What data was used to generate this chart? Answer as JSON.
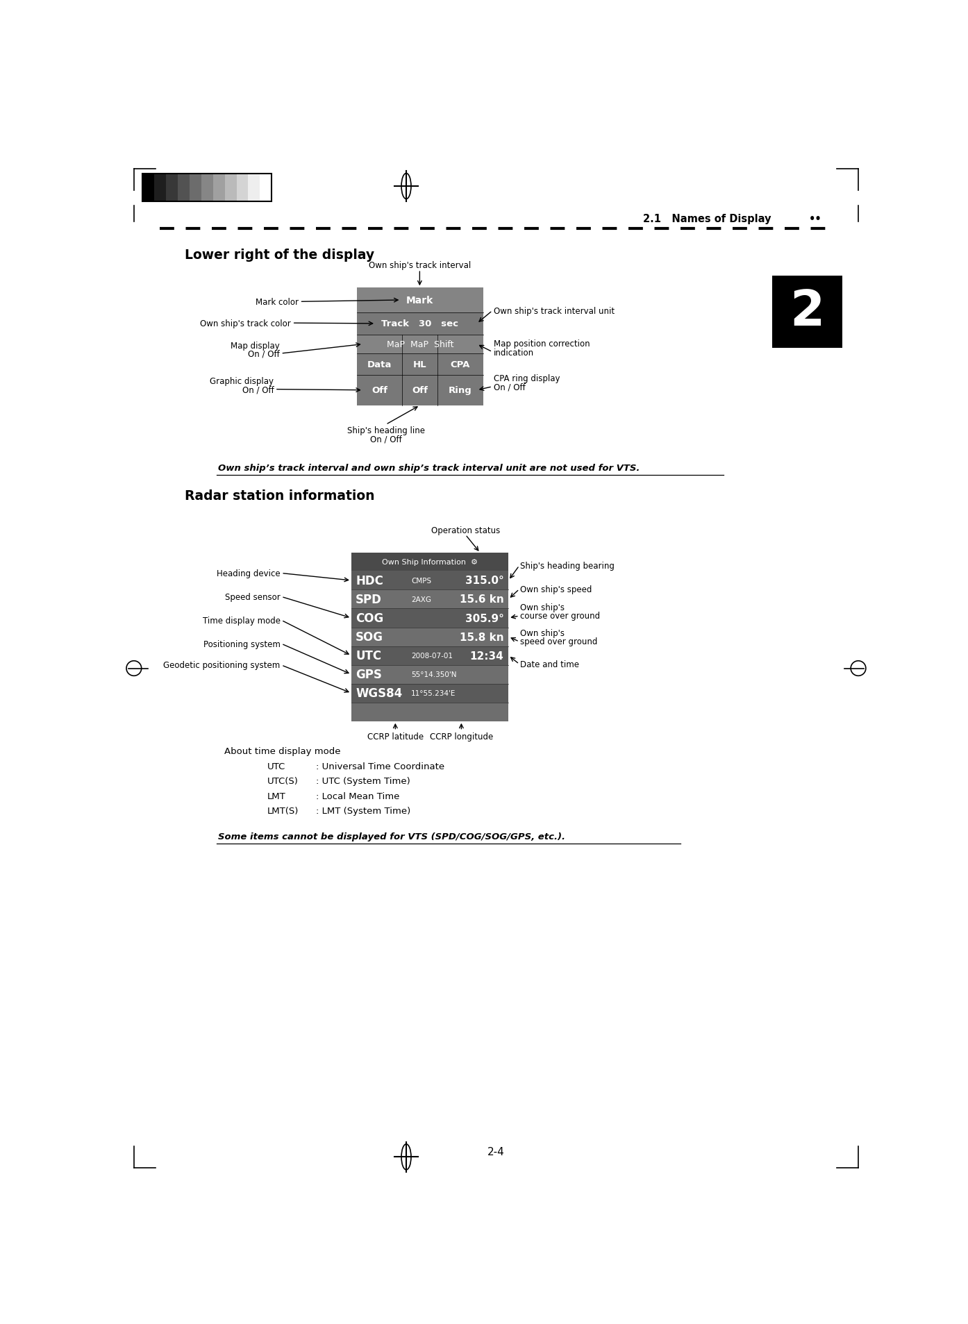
{
  "page_title": "2.1   Names of Display",
  "page_number": "2-4",
  "section1_title": "Lower right of the display",
  "section2_title": "Radar station information",
  "italic_note1": "Own ship’s track interval and own ship’s track interval unit are not used for VTS.",
  "italic_note2": "Some items cannot be displayed for VTS (SPD/COG/SOG/GPS, etc.).",
  "bg_color": "#ffffff",
  "chapter_num": "2",
  "swatch_colors": [
    "#000000",
    "#1e1e1e",
    "#383838",
    "#525252",
    "#6c6c6c",
    "#868686",
    "#a0a0a0",
    "#bababa",
    "#d4d4d4",
    "#eeeeee",
    "#ffffff"
  ],
  "box1_bg": "#848484",
  "box1_row_bg": "#9a9a9a",
  "box2_header_bg": "#4a4a4a",
  "box2_row_bg": "#6e6e6e",
  "box2_alt_bg": "#5a5a5a"
}
